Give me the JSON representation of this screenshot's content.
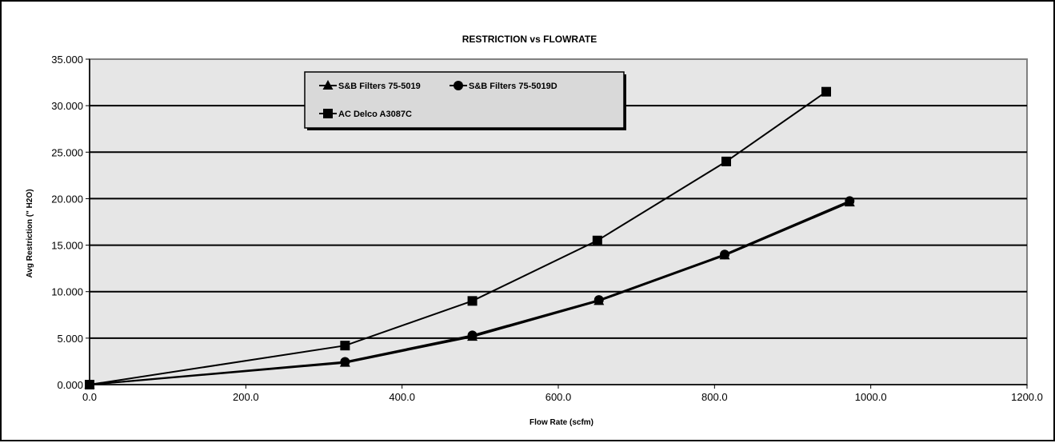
{
  "chart_data": {
    "type": "line",
    "title": "RESTRICTION vs FLOWRATE",
    "xlabel": "Flow Rate (scfm)",
    "ylabel": "Avg Restriction (\" H2O)",
    "xlim": [
      0,
      1200
    ],
    "ylim": [
      0,
      35
    ],
    "x_ticks": [
      "0.0",
      "200.0",
      "400.0",
      "600.0",
      "800.0",
      "1000.0",
      "1200.0"
    ],
    "y_ticks": [
      "0.000",
      "5.000",
      "10.000",
      "15.000",
      "20.000",
      "25.000",
      "30.000",
      "35.000"
    ],
    "grid": "horizontal",
    "legend_position": "top-left",
    "colors": {
      "plot_background": "#e6e6e6",
      "plot_border": "#808080",
      "legend_background": "#d9d9d9",
      "series_line": "#000000"
    },
    "series": [
      {
        "name": "S&B Filters 75-5019",
        "marker": "triangle",
        "points": [
          [
            0,
            0
          ],
          [
            327,
            2.35
          ],
          [
            490,
            5.15
          ],
          [
            652,
            9.0
          ],
          [
            813,
            13.9
          ],
          [
            973,
            19.6
          ]
        ]
      },
      {
        "name": "S&B Filters 75-5019D",
        "marker": "circle",
        "points": [
          [
            0,
            0
          ],
          [
            327,
            2.45
          ],
          [
            490,
            5.3
          ],
          [
            652,
            9.1
          ],
          [
            813,
            14.0
          ],
          [
            973,
            19.75
          ]
        ]
      },
      {
        "name": "AC Delco A3087C",
        "marker": "square",
        "points": [
          [
            0,
            0
          ],
          [
            327,
            4.2
          ],
          [
            490,
            9.0
          ],
          [
            650,
            15.5
          ],
          [
            815,
            24.0
          ],
          [
            943,
            31.5
          ]
        ]
      }
    ]
  }
}
